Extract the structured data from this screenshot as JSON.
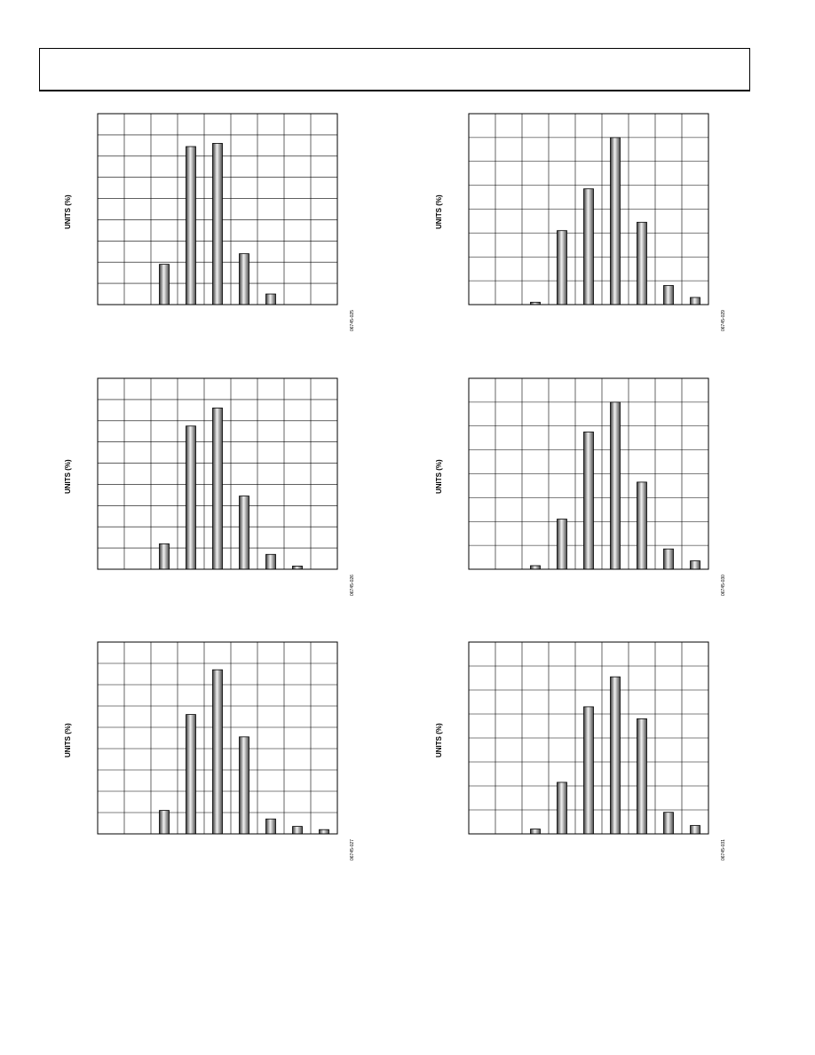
{
  "header": {
    "title": ""
  },
  "charts": [
    {
      "id": "c1",
      "figure_id": "06745-025",
      "ylabel": "UNITS (%)",
      "chart_data": {
        "type": "bar",
        "title": "",
        "xlabel": "",
        "ylabel": "UNITS (%)",
        "ylim": [
          0,
          9
        ],
        "grid": true,
        "columns": 9,
        "values": [
          0,
          0,
          1.9,
          7.45,
          7.6,
          2.4,
          0.5,
          0,
          0
        ]
      }
    },
    {
      "id": "c2",
      "figure_id": "06745-029",
      "ylabel": "UNITS (%)",
      "chart_data": {
        "type": "bar",
        "title": "",
        "xlabel": "",
        "ylabel": "UNITS (%)",
        "ylim": [
          0,
          8
        ],
        "grid": true,
        "columns": 9,
        "values": [
          0,
          0,
          0.1,
          3.1,
          4.85,
          7.0,
          3.45,
          0.8,
          0.3
        ]
      }
    },
    {
      "id": "c3",
      "figure_id": "06745-026",
      "ylabel": "UNITS (%)",
      "chart_data": {
        "type": "bar",
        "title": "",
        "xlabel": "",
        "ylabel": "UNITS (%)",
        "ylim": [
          0,
          9
        ],
        "grid": true,
        "columns": 9,
        "values": [
          0,
          0,
          1.2,
          6.75,
          7.6,
          3.45,
          0.7,
          0.15,
          0
        ]
      }
    },
    {
      "id": "c4",
      "figure_id": "06745-030",
      "ylabel": "UNITS (%)",
      "chart_data": {
        "type": "bar",
        "title": "",
        "xlabel": "",
        "ylabel": "UNITS (%)",
        "ylim": [
          0,
          8
        ],
        "grid": true,
        "columns": 9,
        "values": [
          0,
          0,
          0.15,
          2.1,
          5.75,
          7.0,
          3.65,
          0.85,
          0.35
        ]
      }
    },
    {
      "id": "c5",
      "figure_id": "06745-027",
      "ylabel": "UNITS (%)",
      "chart_data": {
        "type": "bar",
        "title": "",
        "xlabel": "",
        "ylabel": "UNITS (%)",
        "ylim": [
          0,
          9
        ],
        "grid": true,
        "columns": 9,
        "values": [
          0,
          0,
          1.1,
          5.6,
          7.7,
          4.55,
          0.7,
          0.35,
          0.2
        ]
      }
    },
    {
      "id": "c6",
      "figure_id": "06745-031",
      "ylabel": "UNITS (%)",
      "chart_data": {
        "type": "bar",
        "title": "",
        "xlabel": "",
        "ylabel": "UNITS (%)",
        "ylim": [
          0,
          8
        ],
        "grid": true,
        "columns": 9,
        "values": [
          0,
          0,
          0.2,
          2.15,
          5.3,
          6.55,
          4.8,
          0.9,
          0.35
        ]
      }
    }
  ]
}
